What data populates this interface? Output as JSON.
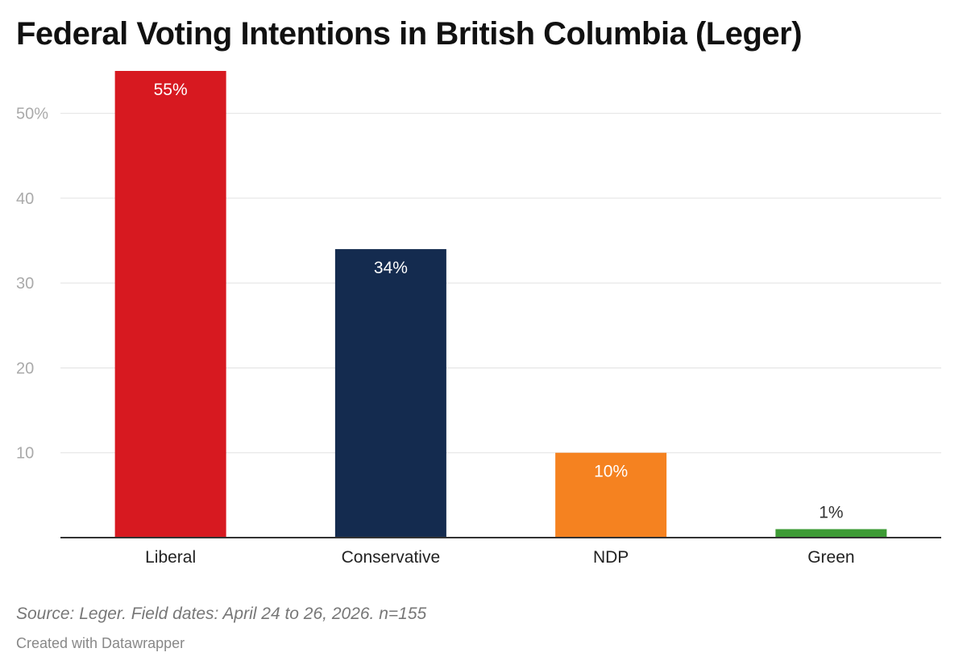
{
  "chart_data": {
    "type": "bar",
    "title": "Federal Voting Intentions in British Columbia (Leger)",
    "categories": [
      "Liberal",
      "Conservative",
      "NDP",
      "Green"
    ],
    "values": [
      55,
      34,
      10,
      1
    ],
    "value_labels": [
      "55%",
      "34%",
      "10%",
      "1%"
    ],
    "colors": [
      "#d71920",
      "#142b4f",
      "#f58220",
      "#3d9b35"
    ],
    "y_ticks": [
      10,
      20,
      30,
      40,
      50
    ],
    "y_tick_labels": [
      "10",
      "20",
      "30",
      "40",
      "50%"
    ],
    "ylim": [
      0,
      55
    ],
    "grid": true,
    "source": "Source: Leger. Field dates: April 24 to 26, 2026. n=155",
    "credit": "Created with Datawrapper"
  }
}
